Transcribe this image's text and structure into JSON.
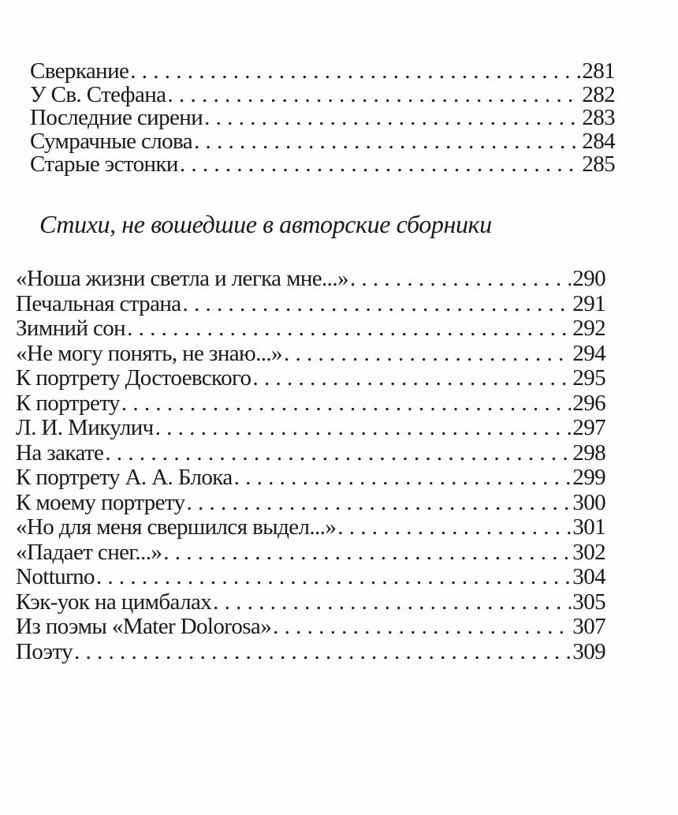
{
  "section1": {
    "entries": [
      {
        "title": "Сверкание",
        "page": "281"
      },
      {
        "title": "У Св. Стефана",
        "page": "282"
      },
      {
        "title": "Последние сирени",
        "page": "283"
      },
      {
        "title": "Сумрачные слова",
        "page": "284"
      },
      {
        "title": "Старые эстонки",
        "page": "285"
      }
    ]
  },
  "section2": {
    "heading": "Стихи, не вошедшие в авторские сборники",
    "entries": [
      {
        "title": "«Ноша жизни светла и легка мне...»",
        "page": "290"
      },
      {
        "title": "Печальная страна",
        "page": "291"
      },
      {
        "title": "Зимний сон",
        "page": "292"
      },
      {
        "title": "«Не могу понять, не знаю...»",
        "page": "294"
      },
      {
        "title": "К портрету Достоевского",
        "page": "295"
      },
      {
        "title": "К портрету",
        "page": "296"
      },
      {
        "title": "Л. И. Микулич",
        "page": "297"
      },
      {
        "title": "На закате",
        "page": "298"
      },
      {
        "title": "К портрету А. А. Блока",
        "page": "299"
      },
      {
        "title": "К моему портрету",
        "page": "300"
      },
      {
        "title": "«Но для меня свершился выдел...»",
        "page": "301"
      },
      {
        "title": "«Падает снег...»",
        "page": "302"
      },
      {
        "title": "Notturno",
        "page": "304"
      },
      {
        "title": "Кэк-уок на цимбалах",
        "page": "305"
      },
      {
        "title": "Из поэмы «Mater Dolorosa»",
        "page": "307"
      },
      {
        "title": "Поэту",
        "page": "309"
      }
    ]
  }
}
